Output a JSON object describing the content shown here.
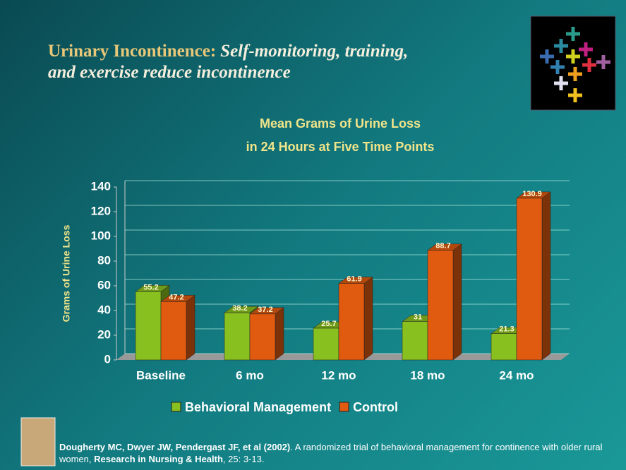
{
  "slide": {
    "title_main": "Urinary Incontinence:",
    "title_sub": "Self-monitoring, training, and exercise reduce incontinence",
    "citation": {
      "authors": "Dougherty MC, Dwyer JW, Pendergast JF, et al (2002)",
      "text1": ". A randomized trial of behavioral management for continence with older rural women, ",
      "journal": "Research in Nursing & Health",
      "text2": ", 25: 3-13."
    }
  },
  "chart_data": {
    "type": "bar",
    "title": [
      "Mean Grams of Urine Loss",
      "in 24 Hours at Five Time Points"
    ],
    "y_label": "Grams of Urine Loss",
    "categories": [
      "Baseline",
      "6 mo",
      "12 mo",
      "18 mo",
      "24 mo"
    ],
    "series": [
      {
        "name": "Behavioral Management",
        "color": "#88c020",
        "values": [
          55.2,
          38.2,
          25.7,
          31,
          21.3
        ]
      },
      {
        "name": "Control",
        "color": "#e05a10",
        "values": [
          47.2,
          37.2,
          61.9,
          88.7,
          130.9
        ]
      }
    ],
    "ylim": [
      0,
      140
    ],
    "yticks": [
      0,
      20,
      40,
      60,
      80,
      100,
      120,
      140
    ],
    "grid": true,
    "legend": "bottom"
  }
}
